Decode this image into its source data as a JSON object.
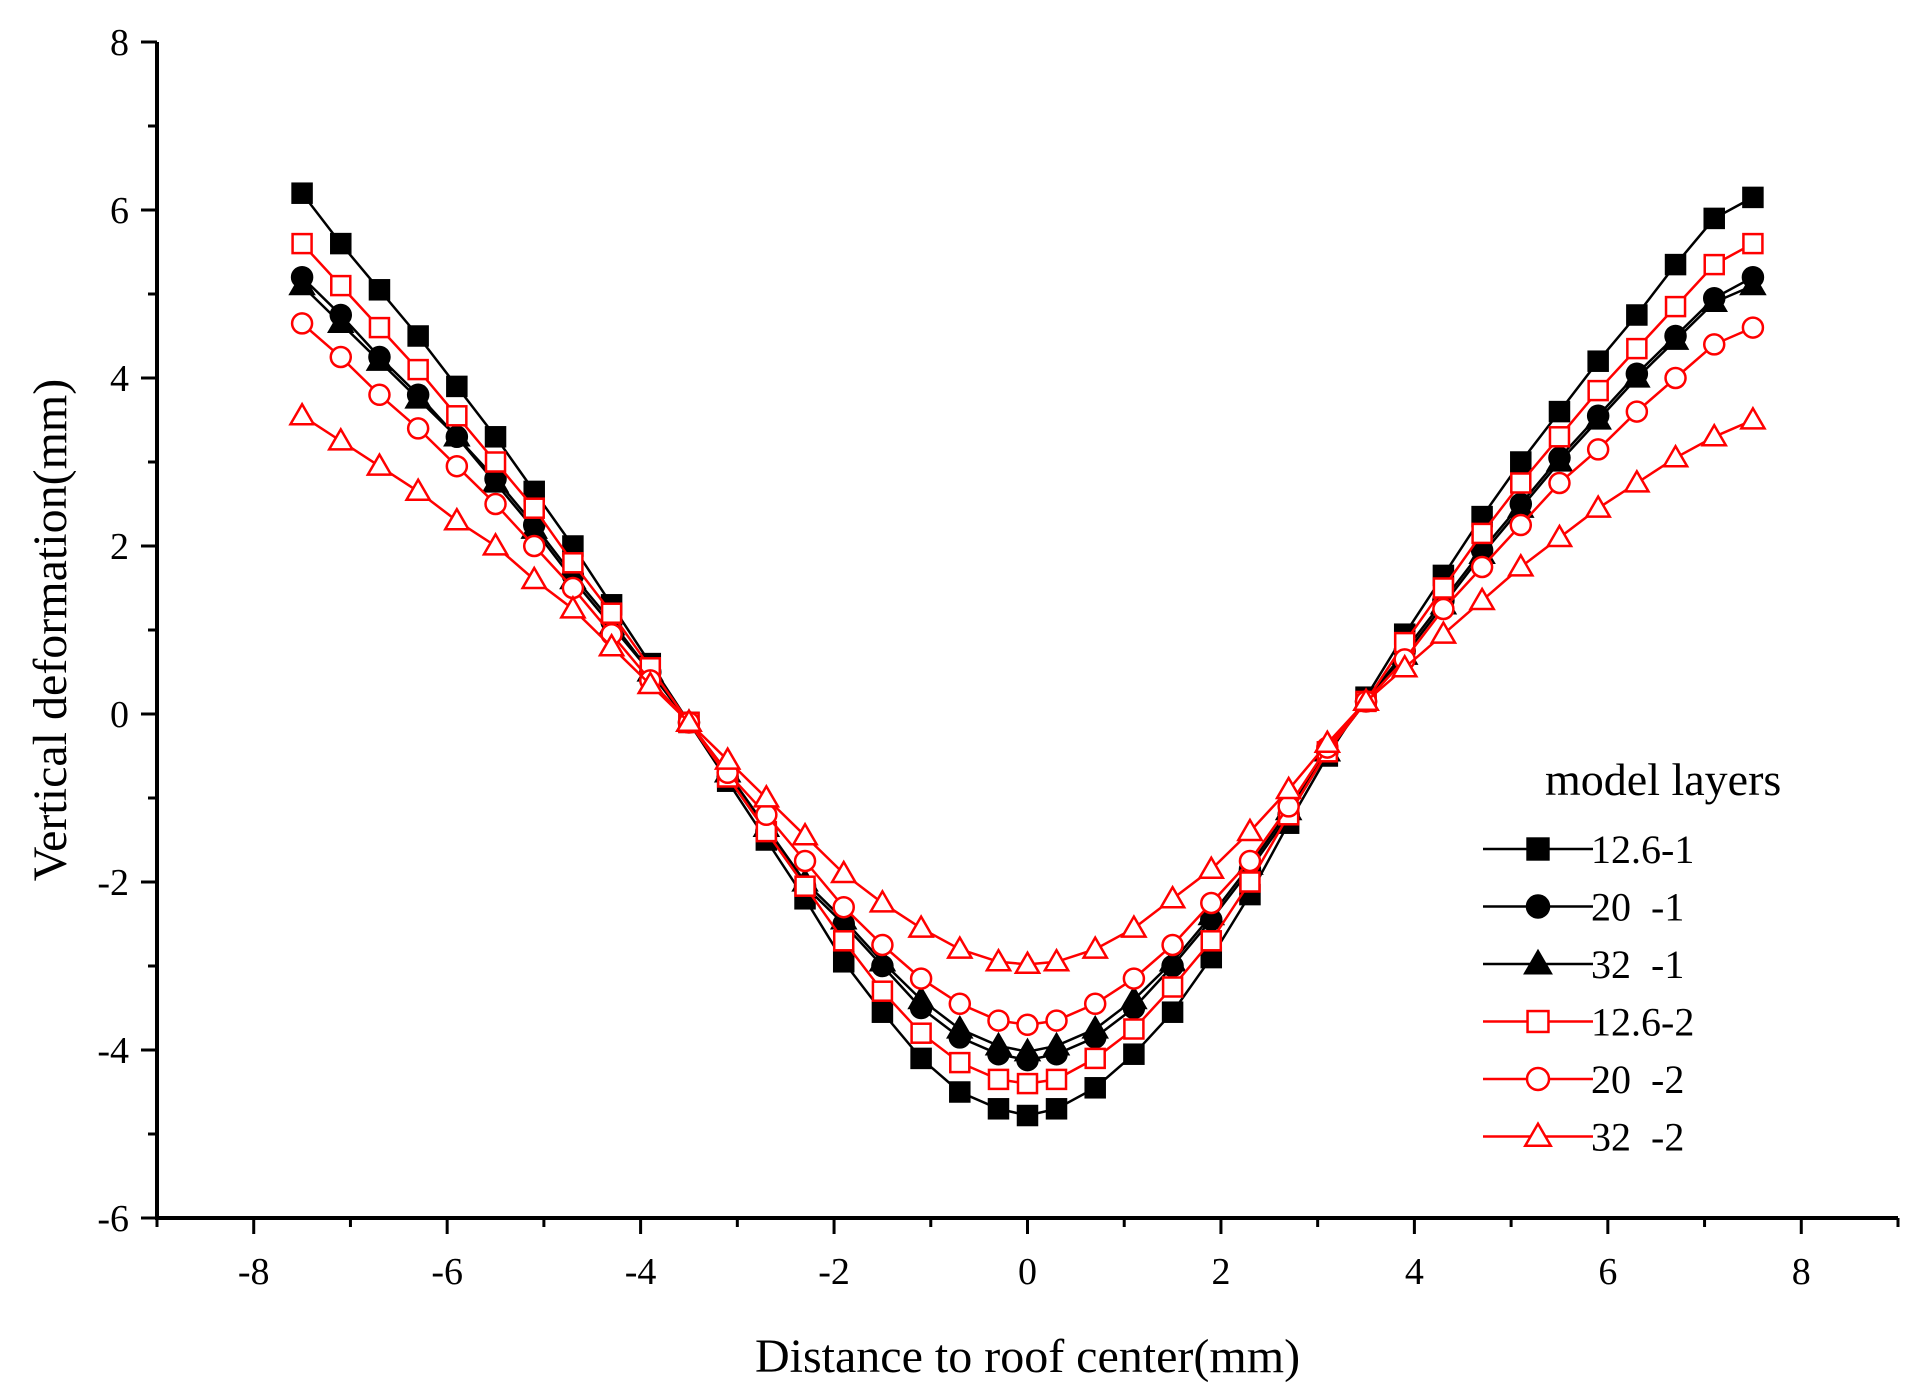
{
  "chart_data": {
    "type": "line",
    "title": "",
    "xlabel": "Distance to roof center(mm)",
    "ylabel": "Vertical deformation(mm)",
    "xlim": [
      -9,
      9
    ],
    "ylim": [
      -6,
      8
    ],
    "xticks": [
      -8,
      -6,
      -4,
      -2,
      0,
      2,
      4,
      6,
      8
    ],
    "yticks": [
      -6,
      -4,
      -2,
      0,
      2,
      4,
      6,
      8
    ],
    "grid": false,
    "legend_title": "model layers",
    "legend_position": "right",
    "x": [
      -7.5,
      -7.1,
      -6.7,
      -6.3,
      -5.9,
      -5.5,
      -5.1,
      -4.7,
      -4.3,
      -3.9,
      -3.5,
      -3.1,
      -2.7,
      -2.3,
      -1.9,
      -1.5,
      -1.1,
      -0.7,
      -0.3,
      0.0,
      0.3,
      0.7,
      1.1,
      1.5,
      1.9,
      2.3,
      2.7,
      3.1,
      3.5,
      3.9,
      4.3,
      4.7,
      5.1,
      5.5,
      5.9,
      6.3,
      6.7,
      7.1,
      7.5
    ],
    "series": [
      {
        "name": "12.6-1",
        "color": "#000000",
        "marker": "square",
        "filled": true,
        "values": [
          6.2,
          5.6,
          5.05,
          4.5,
          3.9,
          3.3,
          2.65,
          2.0,
          1.3,
          0.6,
          -0.1,
          -0.8,
          -1.5,
          -2.2,
          -2.95,
          -3.55,
          -4.1,
          -4.5,
          -4.7,
          -4.78,
          -4.7,
          -4.45,
          -4.05,
          -3.55,
          -2.9,
          -2.15,
          -1.3,
          -0.5,
          0.2,
          0.95,
          1.65,
          2.35,
          3.0,
          3.6,
          4.2,
          4.75,
          5.35,
          5.9,
          6.15
        ]
      },
      {
        "name": "20  -1",
        "color": "#000000",
        "marker": "circle",
        "filled": true,
        "values": [
          5.2,
          4.75,
          4.25,
          3.8,
          3.3,
          2.8,
          2.25,
          1.65,
          1.1,
          0.5,
          -0.1,
          -0.75,
          -1.4,
          -2.05,
          -2.5,
          -3.0,
          -3.5,
          -3.85,
          -4.05,
          -4.12,
          -4.05,
          -3.85,
          -3.5,
          -3.0,
          -2.45,
          -1.85,
          -1.2,
          -0.45,
          0.15,
          0.75,
          1.35,
          1.95,
          2.5,
          3.05,
          3.55,
          4.05,
          4.5,
          4.95,
          5.2
        ]
      },
      {
        "name": "32  -1",
        "color": "#000000",
        "marker": "triangle",
        "filled": true,
        "values": [
          5.1,
          4.65,
          4.2,
          3.75,
          3.3,
          2.75,
          2.2,
          1.6,
          1.05,
          0.5,
          -0.1,
          -0.7,
          -1.35,
          -2.0,
          -2.45,
          -2.95,
          -3.4,
          -3.75,
          -3.95,
          -4.02,
          -3.95,
          -3.75,
          -3.4,
          -2.95,
          -2.4,
          -1.8,
          -1.15,
          -0.45,
          0.15,
          0.7,
          1.3,
          1.9,
          2.45,
          3.0,
          3.5,
          4.0,
          4.45,
          4.9,
          5.1
        ]
      },
      {
        "name": "12.6-2",
        "color": "#ff0000",
        "marker": "square",
        "filled": false,
        "values": [
          5.6,
          5.1,
          4.6,
          4.1,
          3.55,
          3.0,
          2.45,
          1.8,
          1.2,
          0.55,
          -0.1,
          -0.75,
          -1.4,
          -2.05,
          -2.7,
          -3.3,
          -3.8,
          -4.15,
          -4.35,
          -4.4,
          -4.35,
          -4.1,
          -3.75,
          -3.25,
          -2.7,
          -2.0,
          -1.2,
          -0.45,
          0.15,
          0.85,
          1.5,
          2.15,
          2.75,
          3.3,
          3.85,
          4.35,
          4.85,
          5.35,
          5.6
        ]
      },
      {
        "name": "20  -2",
        "color": "#ff0000",
        "marker": "circle",
        "filled": false,
        "values": [
          4.65,
          4.25,
          3.8,
          3.4,
          2.95,
          2.5,
          2.0,
          1.5,
          0.95,
          0.4,
          -0.1,
          -0.7,
          -1.2,
          -1.75,
          -2.3,
          -2.75,
          -3.15,
          -3.45,
          -3.65,
          -3.7,
          -3.65,
          -3.45,
          -3.15,
          -2.75,
          -2.25,
          -1.75,
          -1.1,
          -0.4,
          0.15,
          0.65,
          1.25,
          1.75,
          2.25,
          2.75,
          3.15,
          3.6,
          4.0,
          4.4,
          4.6
        ]
      },
      {
        "name": "32  -2",
        "color": "#ff0000",
        "marker": "triangle",
        "filled": false,
        "values": [
          3.55,
          3.25,
          2.95,
          2.65,
          2.3,
          2.0,
          1.6,
          1.25,
          0.8,
          0.35,
          -0.1,
          -0.55,
          -1.0,
          -1.45,
          -1.9,
          -2.25,
          -2.55,
          -2.8,
          -2.95,
          -2.98,
          -2.95,
          -2.8,
          -2.55,
          -2.2,
          -1.85,
          -1.4,
          -0.9,
          -0.35,
          0.15,
          0.55,
          0.95,
          1.35,
          1.75,
          2.1,
          2.45,
          2.75,
          3.05,
          3.3,
          3.5
        ]
      }
    ]
  }
}
